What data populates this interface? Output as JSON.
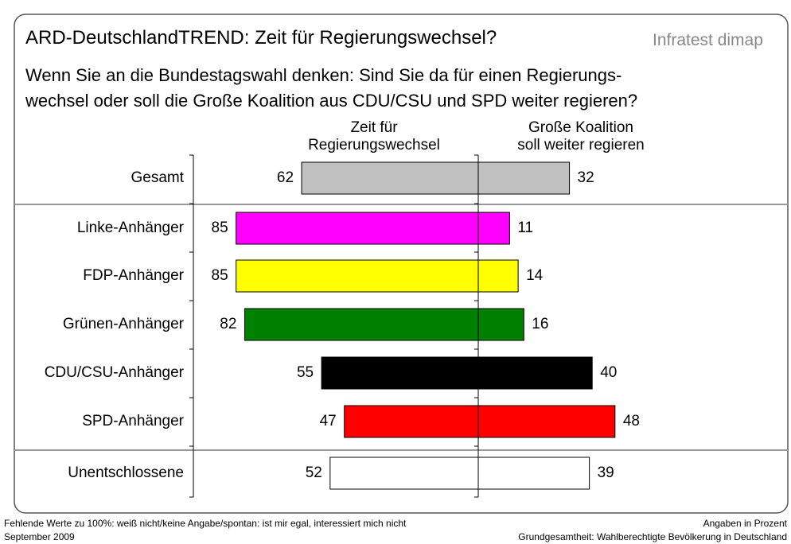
{
  "chart_data": {
    "type": "diverging_bar",
    "title": "ARD-DeutschlandTREND: Zeit für Regierungswechsel?",
    "source": "Infratest dimap",
    "subtitle": "Wenn Sie an die Bundestagswahl denken: Sind Sie da für einen Regierungs-\nwechsel oder soll die Große Koalition aus CDU/CSU und SPD weiter regieren?",
    "categories": [
      "Gesamt",
      "Linke-Anhänger",
      "FDP-Anhänger",
      "Grünen-Anhänger",
      "CDU/CSU-Anhänger",
      "SPD-Anhänger",
      "Unentschlossene"
    ],
    "colors": [
      "#c0c0c0",
      "#ff00ff",
      "#ffff00",
      "#008000",
      "#000000",
      "#ff0000",
      "#ffffff"
    ],
    "series": [
      {
        "name": "Zeit für\nRegierungswechsel",
        "values": [
          62,
          85,
          85,
          82,
          55,
          47,
          52
        ]
      },
      {
        "name": "Große Koalition\nsoll weiter regieren",
        "values": [
          32,
          11,
          14,
          16,
          40,
          48,
          39
        ]
      }
    ],
    "footnotes": [
      "Fehlende Werte zu 100%: weiß nicht/keine Angabe/spontan: ist mir egal, interessiert mich nicht",
      "September 2009"
    ],
    "footnotes_right": [
      "Angaben in Prozent",
      "Grundgesamtheit: Wahlberechtigte Bevölkerung in Deutschland"
    ]
  }
}
